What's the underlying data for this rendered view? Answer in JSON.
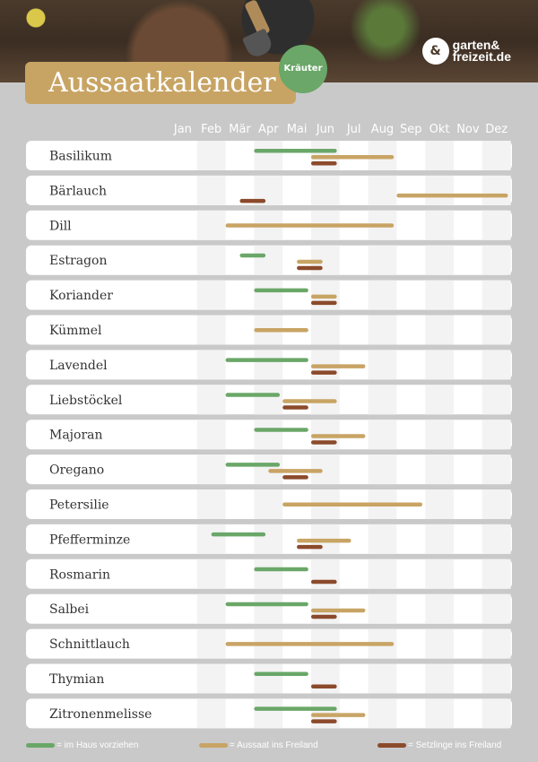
{
  "header": {
    "title": "Aussaatkalender",
    "badge": "Kräuter",
    "logo_line1": "garten&",
    "logo_line2": "freizeit.de"
  },
  "legend": [
    {
      "label": "= im Haus vorziehen",
      "color": "#6aa768"
    },
    {
      "label": "= Aussaat ins Freiland",
      "color": "#c8a464"
    },
    {
      "label": "= Setzlinge ins Freiland",
      "color": "#8b4a2b"
    }
  ],
  "chart_data": {
    "type": "gantt",
    "months": [
      "Jan",
      "Feb",
      "Mär",
      "Apr",
      "Mai",
      "Jun",
      "Jul",
      "Aug",
      "Sep",
      "Okt",
      "Nov",
      "Dez"
    ],
    "series": [
      {
        "name": "= im Haus vorziehen",
        "key": "indoor",
        "color": "#6aa768"
      },
      {
        "name": "= Aussaat ins Freiland",
        "key": "outdoor",
        "color": "#c8a464"
      },
      {
        "name": "= Setzlinge ins Freiland",
        "key": "seedlings",
        "color": "#8b4a2b"
      }
    ],
    "plants": [
      {
        "name": "Basilikum",
        "indoor": [
          3,
          5.9
        ],
        "outdoor": [
          5,
          7.9
        ],
        "seedlings": [
          5,
          5.9
        ]
      },
      {
        "name": "Bärlauch",
        "indoor": null,
        "outdoor": [
          8,
          11.9
        ],
        "seedlings": [
          2.5,
          3.4
        ]
      },
      {
        "name": "Dill",
        "indoor": null,
        "outdoor": [
          2,
          7.9
        ],
        "seedlings": null
      },
      {
        "name": "Estragon",
        "indoor": [
          2.5,
          3.4
        ],
        "outdoor": [
          4.5,
          5.4
        ],
        "seedlings": [
          4.5,
          5.4
        ]
      },
      {
        "name": "Koriander",
        "indoor": [
          3,
          4.9
        ],
        "outdoor": [
          5,
          5.9
        ],
        "seedlings": [
          5,
          5.9
        ]
      },
      {
        "name": "Kümmel",
        "indoor": null,
        "outdoor": [
          3,
          4.9
        ],
        "seedlings": null
      },
      {
        "name": "Lavendel",
        "indoor": [
          2,
          4.9
        ],
        "outdoor": [
          5,
          6.9
        ],
        "seedlings": [
          5,
          5.9
        ]
      },
      {
        "name": "Liebstöckel",
        "indoor": [
          2,
          3.9
        ],
        "outdoor": [
          4,
          5.9
        ],
        "seedlings": [
          4,
          4.9
        ]
      },
      {
        "name": "Majoran",
        "indoor": [
          3,
          4.9
        ],
        "outdoor": [
          5,
          6.9
        ],
        "seedlings": [
          5,
          5.9
        ]
      },
      {
        "name": "Oregano",
        "indoor": [
          2,
          3.9
        ],
        "outdoor": [
          3.5,
          5.4
        ],
        "seedlings": [
          4,
          4.9
        ]
      },
      {
        "name": "Petersilie",
        "indoor": null,
        "outdoor": [
          4,
          8.9
        ],
        "seedlings": null
      },
      {
        "name": "Pfefferminze",
        "indoor": [
          1.5,
          3.4
        ],
        "outdoor": [
          4.5,
          6.4
        ],
        "seedlings": [
          4.5,
          5.4
        ]
      },
      {
        "name": "Rosmarin",
        "indoor": [
          3,
          4.9
        ],
        "outdoor": null,
        "seedlings": [
          5,
          5.9
        ]
      },
      {
        "name": "Salbei",
        "indoor": [
          2,
          4.9
        ],
        "outdoor": [
          5,
          6.9
        ],
        "seedlings": [
          5,
          5.9
        ]
      },
      {
        "name": "Schnittlauch",
        "indoor": null,
        "outdoor": [
          2,
          7.9
        ],
        "seedlings": null
      },
      {
        "name": "Thymian",
        "indoor": [
          3,
          4.9
        ],
        "outdoor": null,
        "seedlings": [
          5,
          5.9
        ]
      },
      {
        "name": "Zitronenmelisse",
        "indoor": [
          3,
          5.9
        ],
        "outdoor": [
          5,
          6.9
        ],
        "seedlings": [
          5,
          5.9
        ]
      }
    ]
  }
}
